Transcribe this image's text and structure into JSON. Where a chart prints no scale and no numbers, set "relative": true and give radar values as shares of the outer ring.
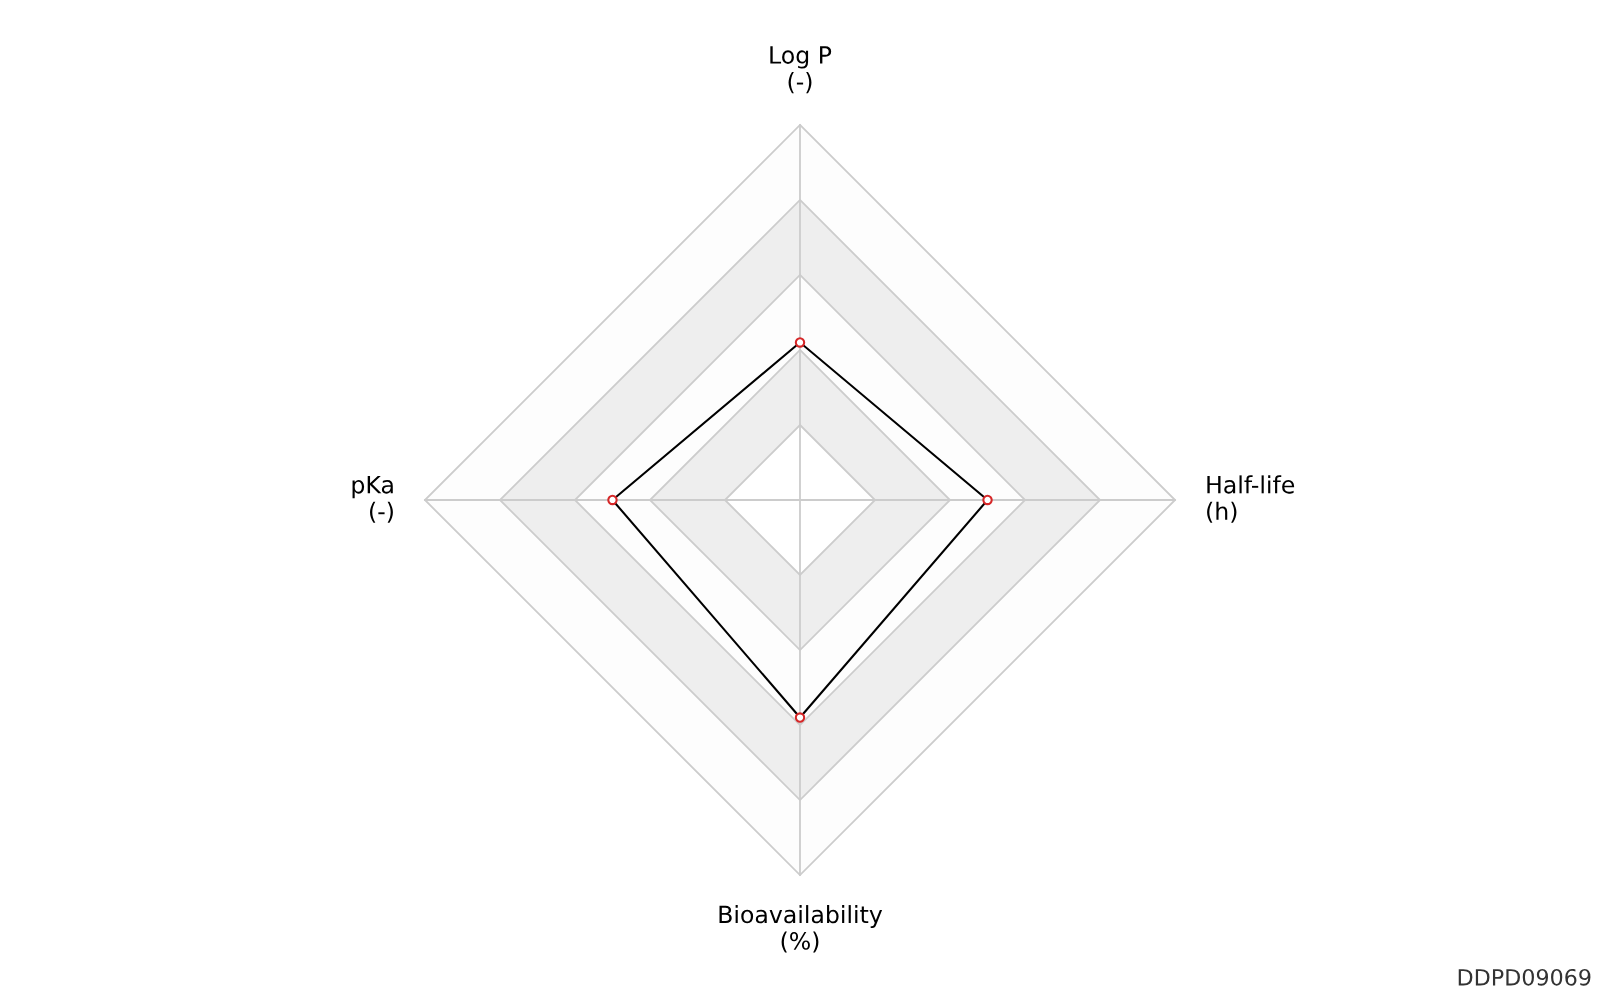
{
  "chart_data": {
    "type": "radar",
    "relative": true,
    "categories": [
      "Log P\n(-)",
      "Half-life\n(h)",
      "Bioavailability\n(%)",
      "pKa\n(-)"
    ],
    "series": [
      {
        "color": "#000000",
        "values": [
          0.42,
          0.5,
          0.58,
          0.5
        ]
      }
    ],
    "marker": "circle",
    "grid": true,
    "annotations": [
      "DDPD09069"
    ]
  }
}
